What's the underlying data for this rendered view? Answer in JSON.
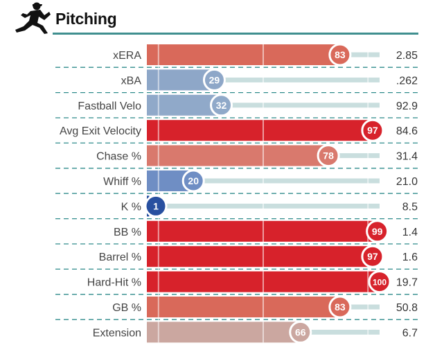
{
  "header": {
    "title": "Pitching",
    "icon": "baseball-pitcher-icon"
  },
  "colors": {
    "accent_rule": "#3f8f8f",
    "track": "#c9dede",
    "divider": "#2e8b8b"
  },
  "chart_data": {
    "type": "bar",
    "orientation": "horizontal",
    "xlim": [
      0,
      100
    ],
    "categories": [
      "xERA",
      "xBA",
      "Fastball Velo",
      "Avg Exit Velocity",
      "Chase %",
      "Whiff %",
      "K %",
      "BB %",
      "Barrel %",
      "Hard-Hit %",
      "GB %",
      "Extension"
    ],
    "percentiles": [
      83,
      29,
      32,
      97,
      78,
      20,
      1,
      99,
      97,
      100,
      83,
      66
    ],
    "stat_values": [
      "2.85",
      ".262",
      "92.9",
      "84.6",
      "31.4",
      "21.0",
      "8.5",
      "1.4",
      "1.6",
      "19.7",
      "50.8",
      "6.7"
    ],
    "bar_colors": [
      "#d9695a",
      "#8ea7c8",
      "#90a9c9",
      "#d7222b",
      "#d9796d",
      "#6f8ec4",
      "#2850a0",
      "#d7222b",
      "#d7222b",
      "#d7222b",
      "#d9695a",
      "#cba7a0"
    ]
  }
}
